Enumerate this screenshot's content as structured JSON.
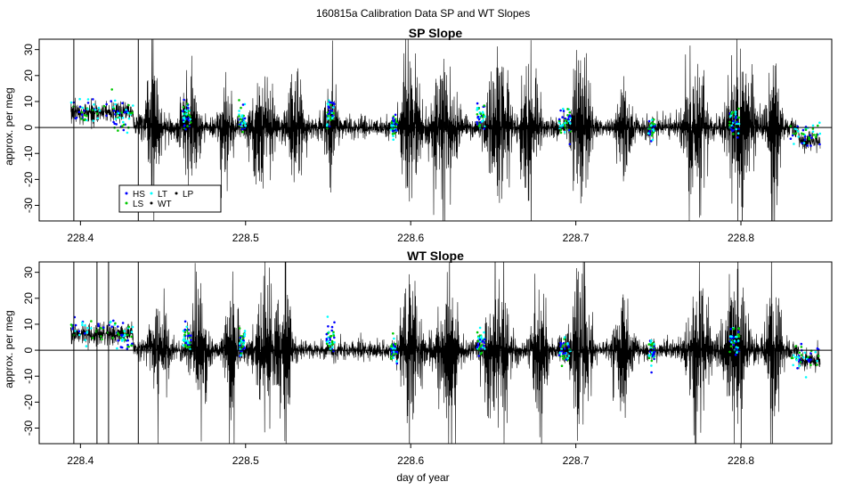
{
  "figure": {
    "suptitle": "160815a   Calibration Data SP and WT Slopes"
  },
  "legend": {
    "items": [
      {
        "label": "HS",
        "color": "#0000ff"
      },
      {
        "label": "LS",
        "color": "#00c800"
      },
      {
        "label": "LT",
        "color": "#00ffff"
      },
      {
        "label": "WT",
        "color": "#000000"
      },
      {
        "label": "LP",
        "color": "#000000"
      }
    ]
  },
  "colors": {
    "background": "#ffffff",
    "trace": "#000000",
    "hs": "#0000ff",
    "ls": "#00c800",
    "lt": "#00ffff"
  },
  "chart_data": [
    {
      "type": "line",
      "title": "SP Slope",
      "xlabel": "",
      "ylabel": "approx. per meg",
      "xlim": [
        228.375,
        228.855
      ],
      "ylim": [
        -36,
        34
      ],
      "xticks": [
        228.4,
        228.5,
        228.6,
        228.7,
        228.8
      ],
      "xtick_labels": [
        "228.4",
        "228.5",
        "228.6",
        "228.7",
        "228.8"
      ],
      "yticks": [
        -30,
        -20,
        -10,
        0,
        10,
        20,
        30
      ],
      "ytick_labels": [
        "-30",
        "-20",
        "-10",
        "0",
        "10",
        "20",
        "30"
      ],
      "hline": 0,
      "vlines": [
        228.396,
        228.435
      ],
      "x_range": [
        228.394,
        228.848
      ],
      "segments": [
        {
          "x": [
            228.394,
            228.432
          ],
          "level": 6
        },
        {
          "x": [
            228.432,
            228.445
          ],
          "level": 1
        },
        {
          "x": [
            228.445,
            228.835
          ],
          "level": 0
        },
        {
          "x": [
            228.835,
            228.848
          ],
          "level": -5
        }
      ],
      "bursts": [
        {
          "center": 228.444,
          "width": 0.004,
          "amplitude": 30
        },
        {
          "center": 228.466,
          "width": 0.005,
          "amplitude": 26
        },
        {
          "center": 228.488,
          "width": 0.003,
          "amplitude": 34
        },
        {
          "center": 228.51,
          "width": 0.006,
          "amplitude": 34
        },
        {
          "center": 228.53,
          "width": 0.005,
          "amplitude": 24
        },
        {
          "center": 228.552,
          "width": 0.004,
          "amplitude": 22
        },
        {
          "center": 228.6,
          "width": 0.006,
          "amplitude": 36
        },
        {
          "center": 228.62,
          "width": 0.007,
          "amplitude": 30
        },
        {
          "center": 228.653,
          "width": 0.006,
          "amplitude": 36
        },
        {
          "center": 228.672,
          "width": 0.005,
          "amplitude": 36
        },
        {
          "center": 228.703,
          "width": 0.005,
          "amplitude": 36
        },
        {
          "center": 228.73,
          "width": 0.004,
          "amplitude": 22
        },
        {
          "center": 228.772,
          "width": 0.006,
          "amplitude": 36
        },
        {
          "center": 228.8,
          "width": 0.008,
          "amplitude": 36
        },
        {
          "center": 228.82,
          "width": 0.004,
          "amplitude": 36
        }
      ],
      "cal_clusters": [
        {
          "x": [
            228.394,
            228.42
          ],
          "y": 7
        },
        {
          "x": [
            228.42,
            228.432
          ],
          "y": 4
        },
        {
          "x": [
            228.462,
            228.467
          ],
          "y": 5
        },
        {
          "x": [
            228.496,
            228.5
          ],
          "y": 3
        },
        {
          "x": [
            228.549,
            228.554
          ],
          "y": 6
        },
        {
          "x": [
            228.588,
            228.592
          ],
          "y": 0
        },
        {
          "x": [
            228.64,
            228.645
          ],
          "y": 4
        },
        {
          "x": [
            228.69,
            228.697
          ],
          "y": 2
        },
        {
          "x": [
            228.744,
            228.748
          ],
          "y": 0
        },
        {
          "x": [
            228.793,
            228.799
          ],
          "y": 2
        },
        {
          "x": [
            228.83,
            228.848
          ],
          "y": -3
        }
      ]
    },
    {
      "type": "line",
      "title": "WT Slope",
      "xlabel": "day of year",
      "ylabel": "approx. per meg",
      "xlim": [
        228.375,
        228.855
      ],
      "ylim": [
        -36,
        34
      ],
      "xticks": [
        228.4,
        228.5,
        228.6,
        228.7,
        228.8
      ],
      "xtick_labels": [
        "228.4",
        "228.5",
        "228.6",
        "228.7",
        "228.8"
      ],
      "yticks": [
        -30,
        -20,
        -10,
        0,
        10,
        20,
        30
      ],
      "ytick_labels": [
        "-30",
        "-20",
        "-10",
        "0",
        "10",
        "20",
        "30"
      ],
      "hline": 0,
      "vlines": [
        228.396,
        228.41,
        228.417,
        228.435
      ],
      "x_range": [
        228.394,
        228.848
      ],
      "segments": [
        {
          "x": [
            228.394,
            228.432
          ],
          "level": 6
        },
        {
          "x": [
            228.432,
            228.445
          ],
          "level": 1
        },
        {
          "x": [
            228.445,
            228.835
          ],
          "level": 0
        },
        {
          "x": [
            228.835,
            228.848
          ],
          "level": -4
        }
      ],
      "bursts": [
        {
          "center": 228.448,
          "width": 0.005,
          "amplitude": 20
        },
        {
          "center": 228.472,
          "width": 0.005,
          "amplitude": 26
        },
        {
          "center": 228.492,
          "width": 0.004,
          "amplitude": 30
        },
        {
          "center": 228.512,
          "width": 0.006,
          "amplitude": 34
        },
        {
          "center": 228.524,
          "width": 0.004,
          "amplitude": 34
        },
        {
          "center": 228.6,
          "width": 0.006,
          "amplitude": 36
        },
        {
          "center": 228.622,
          "width": 0.006,
          "amplitude": 34
        },
        {
          "center": 228.652,
          "width": 0.007,
          "amplitude": 36
        },
        {
          "center": 228.678,
          "width": 0.004,
          "amplitude": 28
        },
        {
          "center": 228.703,
          "width": 0.006,
          "amplitude": 36
        },
        {
          "center": 228.728,
          "width": 0.005,
          "amplitude": 28
        },
        {
          "center": 228.775,
          "width": 0.006,
          "amplitude": 36
        },
        {
          "center": 228.797,
          "width": 0.006,
          "amplitude": 36
        },
        {
          "center": 228.82,
          "width": 0.004,
          "amplitude": 36
        }
      ],
      "cal_clusters": [
        {
          "x": [
            228.394,
            228.42
          ],
          "y": 8
        },
        {
          "x": [
            228.42,
            228.432
          ],
          "y": 5
        },
        {
          "x": [
            228.462,
            228.467
          ],
          "y": 4
        },
        {
          "x": [
            228.496,
            228.5
          ],
          "y": 2
        },
        {
          "x": [
            228.549,
            228.554
          ],
          "y": 5
        },
        {
          "x": [
            228.588,
            228.592
          ],
          "y": 0
        },
        {
          "x": [
            228.64,
            228.645
          ],
          "y": 3
        },
        {
          "x": [
            228.69,
            228.697
          ],
          "y": 0
        },
        {
          "x": [
            228.744,
            228.748
          ],
          "y": 0
        },
        {
          "x": [
            228.793,
            228.799
          ],
          "y": 4
        },
        {
          "x": [
            228.83,
            228.848
          ],
          "y": -3
        }
      ]
    }
  ]
}
